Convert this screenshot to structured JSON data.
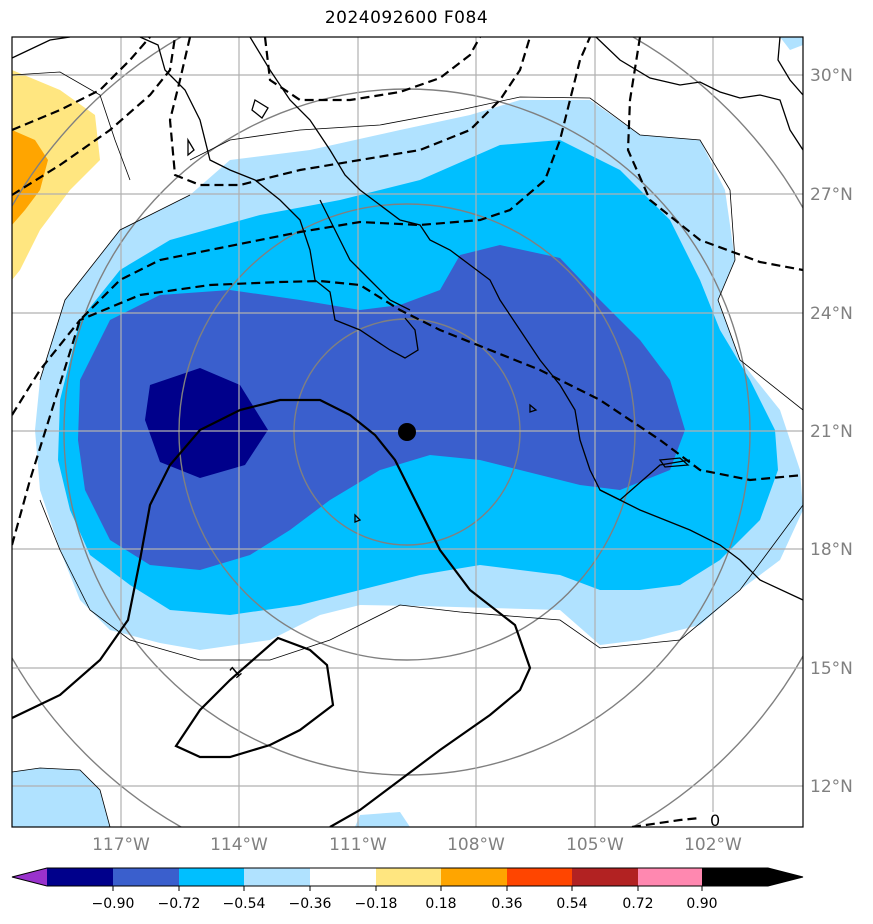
{
  "title": "2024092600 F084",
  "latitude_labels": [
    "30°N",
    "27°N",
    "24°N",
    "21°N",
    "18°N",
    "15°N",
    "12°N"
  ],
  "longitude_labels": [
    "117°W",
    "114°W",
    "111°W",
    "108°W",
    "105°W",
    "102°W"
  ],
  "colorbar": {
    "ticks": [
      "−0.90",
      "−0.72",
      "−0.54",
      "−0.36",
      "−0.18",
      "0.18",
      "0.36",
      "0.54",
      "0.72",
      "0.90"
    ],
    "colors": [
      "#9932cc",
      "#00008b",
      "#3a5fcd",
      "#00bfff",
      "#b0e2ff",
      "#ffffff",
      "#ffe680",
      "#ffa500",
      "#ff4500",
      "#b22222",
      "#ff88b0"
    ]
  },
  "contour_labels": [
    "1",
    "0"
  ],
  "center_marker": "storm-center"
}
